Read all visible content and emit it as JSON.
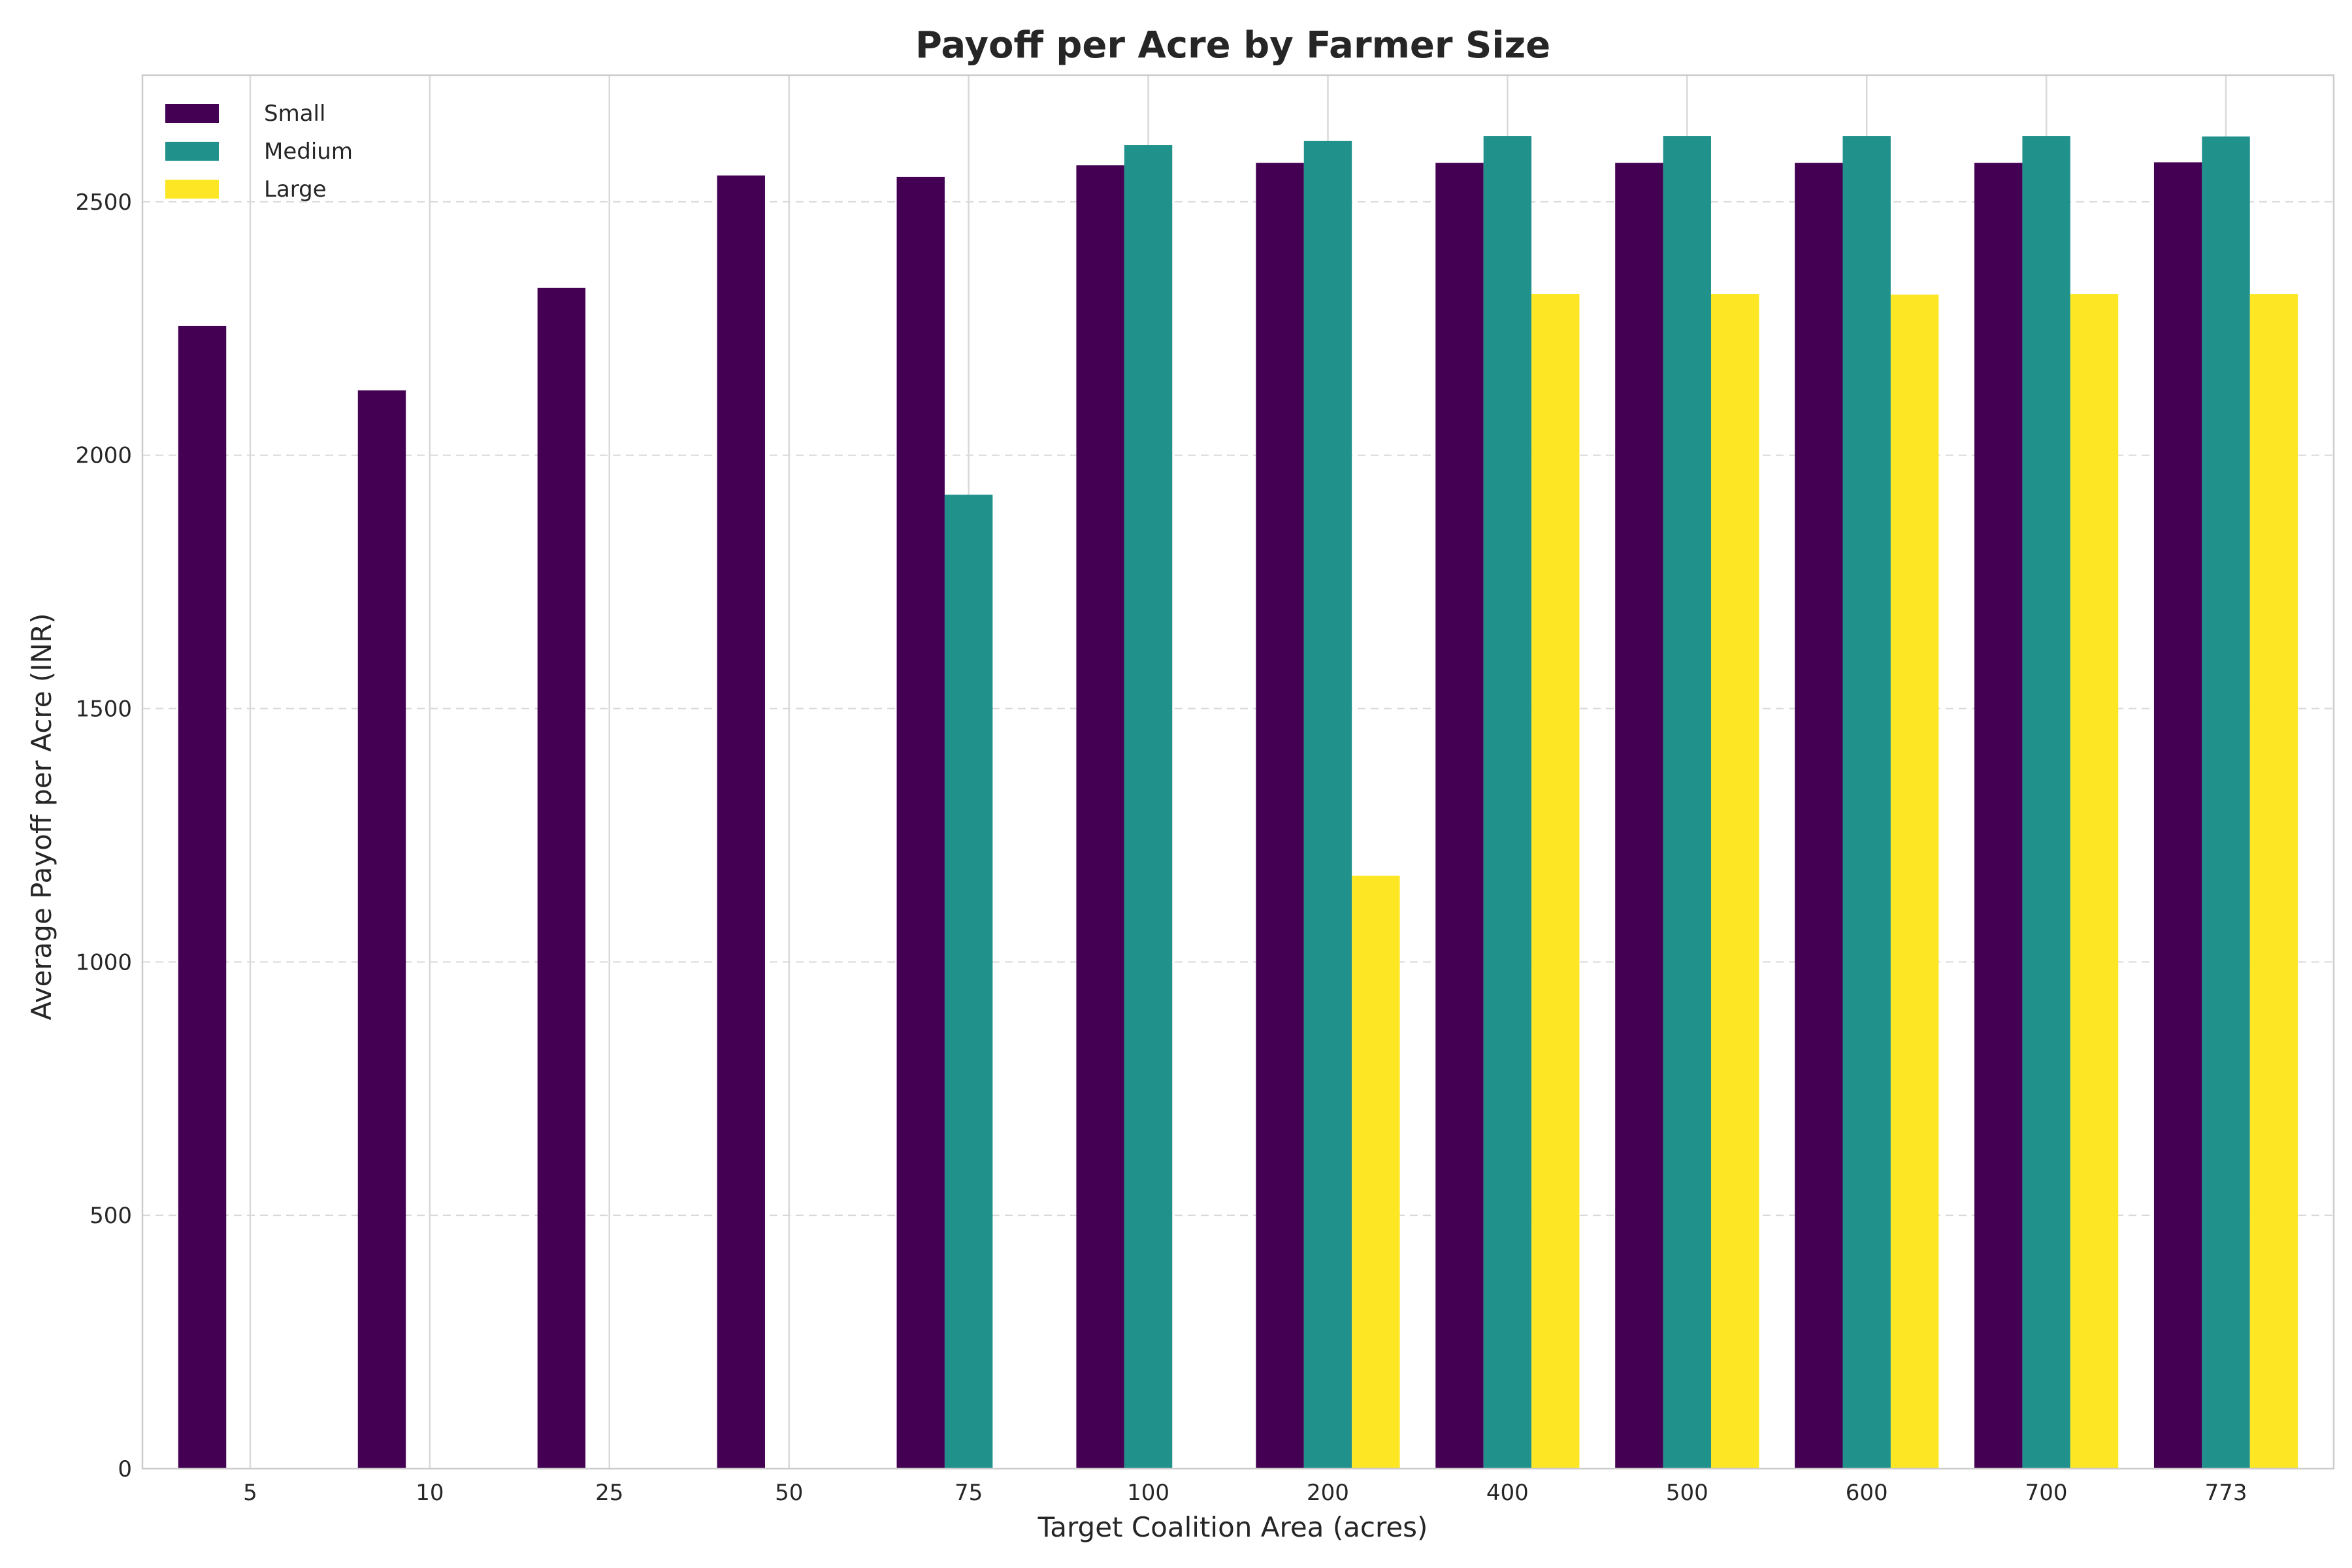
{
  "chart_data": {
    "type": "bar",
    "title": "Payoff per Acre by Farmer Size",
    "xlabel": "Target Coalition Area (acres)",
    "ylabel": "Average Payoff per Acre (INR)",
    "categories": [
      "5",
      "10",
      "25",
      "50",
      "75",
      "100",
      "200",
      "400",
      "500",
      "600",
      "700",
      "773"
    ],
    "ylim": [
      0,
      2750
    ],
    "yticks": [
      0,
      500,
      1000,
      1500,
      2000,
      2500
    ],
    "grid": true,
    "legend_position": "top-left",
    "series": [
      {
        "name": "Small",
        "color": "#440154",
        "values": [
          2255,
          2128,
          2330,
          2552,
          2549,
          2572,
          2577,
          2577,
          2577,
          2577,
          2577,
          2578
        ]
      },
      {
        "name": "Medium",
        "color": "#21918c",
        "values": [
          null,
          null,
          null,
          null,
          1922,
          2612,
          2620,
          2630,
          2630,
          2630,
          2630,
          2629
        ]
      },
      {
        "name": "Large",
        "color": "#fde725",
        "values": [
          null,
          null,
          null,
          null,
          null,
          null,
          1170,
          2318,
          2318,
          2317,
          2318,
          2318
        ]
      }
    ]
  }
}
